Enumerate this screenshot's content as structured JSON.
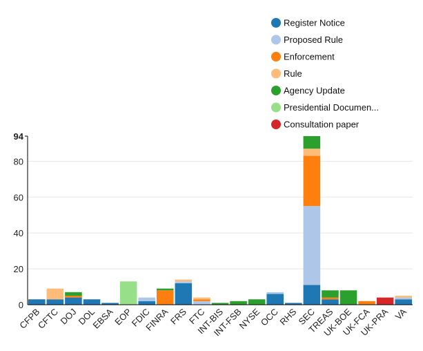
{
  "chart_data": {
    "type": "bar",
    "stacked": true,
    "title": "",
    "xlabel": "",
    "ylabel": "",
    "ylim": [
      0,
      94
    ],
    "yticks": [
      0,
      20,
      40,
      60,
      80,
      94
    ],
    "grid": true,
    "legend_position": "top-right",
    "categories": [
      "CFPB",
      "CFTC",
      "DOJ",
      "DOL",
      "EBSA",
      "EOP",
      "FDIC",
      "FINRA",
      "FRS",
      "FTC",
      "INT-BIS",
      "INT-FSB",
      "NYSE",
      "OCC",
      "RHS",
      "SEC",
      "TREAS",
      "UK-BOE",
      "UK-FCA",
      "UK-PRA",
      "VA"
    ],
    "series": [
      {
        "name": "Register Notice",
        "color": "#1f77b4",
        "values": [
          3,
          3,
          4,
          3,
          1,
          0,
          2,
          0,
          12,
          0,
          0,
          0,
          0,
          6,
          1,
          11,
          3,
          0,
          0,
          0,
          3
        ]
      },
      {
        "name": "Proposed Rule",
        "color": "#aec7e8",
        "values": [
          0,
          0,
          0,
          0,
          0,
          0,
          2,
          0,
          1,
          2,
          0,
          0,
          0,
          1,
          0,
          44,
          0,
          0,
          0,
          0,
          1
        ]
      },
      {
        "name": "Enforcement",
        "color": "#ff7f0e",
        "values": [
          0,
          0,
          1,
          0,
          0,
          0,
          0,
          8,
          0,
          1,
          0,
          0,
          0,
          0,
          0,
          28,
          1,
          0,
          2,
          0,
          0
        ]
      },
      {
        "name": "Rule",
        "color": "#ffbb78",
        "values": [
          0,
          6,
          0,
          0,
          0,
          0,
          0,
          0,
          1,
          1,
          0,
          0,
          0,
          0,
          0,
          4,
          0,
          0,
          0,
          0,
          1
        ]
      },
      {
        "name": "Agency Update",
        "color": "#2ca02c",
        "values": [
          0,
          0,
          2,
          0,
          0,
          0,
          0,
          1,
          0,
          0,
          1,
          2,
          3,
          0,
          0,
          7,
          4,
          8,
          0,
          0,
          0
        ]
      },
      {
        "name": "Presidential Documen...",
        "color": "#98df8a",
        "values": [
          0,
          0,
          0,
          0,
          0,
          13,
          0,
          0,
          0,
          0,
          0,
          0,
          0,
          0,
          0,
          0,
          0,
          0,
          0,
          0,
          0
        ]
      },
      {
        "name": "Consultation paper",
        "color": "#d62728",
        "values": [
          0,
          0,
          0,
          0,
          0,
          0,
          0,
          0,
          0,
          0,
          0,
          0,
          0,
          0,
          0,
          0,
          0,
          0,
          0,
          4,
          0
        ]
      }
    ]
  }
}
